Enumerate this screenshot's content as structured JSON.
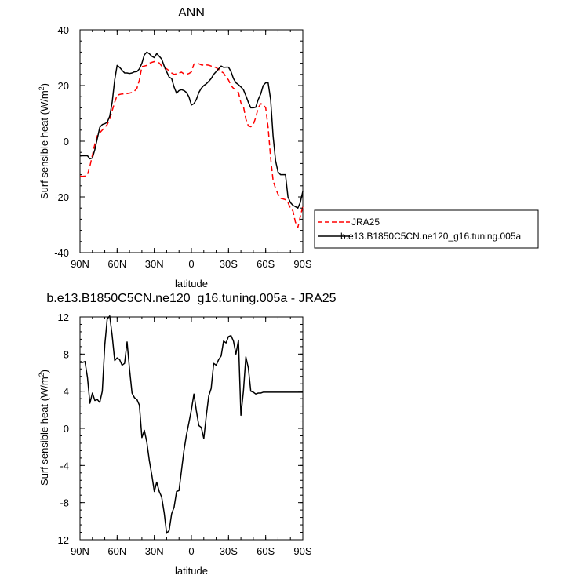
{
  "chart_data": [
    {
      "type": "line",
      "title": "ANN",
      "xlabel": "latitude",
      "ylabel": "Surf sensible heat (W/m",
      "ylabel_sup": "2",
      "ylabel_close": ")",
      "xlim": [
        90,
        -90
      ],
      "ylim": [
        -40,
        40
      ],
      "xticks": [
        {
          "value": 90,
          "label": "90N"
        },
        {
          "value": 60,
          "label": "60N"
        },
        {
          "value": 30,
          "label": "30N"
        },
        {
          "value": 0,
          "label": "0"
        },
        {
          "value": -30,
          "label": "30S"
        },
        {
          "value": -60,
          "label": "60S"
        },
        {
          "value": -90,
          "label": "90S"
        }
      ],
      "yticks": [
        {
          "value": 40,
          "label": "40"
        },
        {
          "value": 20,
          "label": "20"
        },
        {
          "value": 0,
          "label": "0"
        },
        {
          "value": -20,
          "label": "-20"
        },
        {
          "value": -40,
          "label": "-40"
        }
      ],
      "legend": {
        "position": "right"
      },
      "series": [
        {
          "name": "JRA25",
          "color": "#ff0000",
          "dash": "dashed",
          "x": [
            90,
            88,
            86,
            84,
            82,
            80,
            78,
            76,
            74,
            72,
            70,
            68,
            66,
            64,
            62,
            60,
            58,
            56,
            54,
            52,
            50,
            48,
            46,
            44,
            42,
            40,
            38,
            36,
            34,
            32,
            30,
            28,
            26,
            24,
            22,
            20,
            18,
            16,
            14,
            12,
            10,
            8,
            6,
            4,
            2,
            0,
            -2,
            -4,
            -6,
            -8,
            -10,
            -12,
            -14,
            -16,
            -18,
            -20,
            -22,
            -24,
            -26,
            -28,
            -30,
            -32,
            -34,
            -36,
            -38,
            -40,
            -42,
            -44,
            -46,
            -48,
            -50,
            -52,
            -54,
            -56,
            -58,
            -60,
            -62,
            -64,
            -66,
            -68,
            -70,
            -72,
            -74,
            -76,
            -78,
            -80,
            -82,
            -84,
            -86,
            -88,
            -90
          ],
          "y": [
            -12.5,
            -12.6,
            -12.5,
            -12,
            -9,
            -5,
            -1,
            2,
            3,
            4,
            5,
            6,
            8,
            11,
            14,
            16.5,
            16.8,
            17,
            17,
            17.1,
            17.3,
            17.5,
            18,
            19,
            22,
            26.8,
            27,
            27.2,
            28,
            28.3,
            28.6,
            28.4,
            28.1,
            27,
            26.3,
            26,
            25.3,
            24.5,
            24,
            24.2,
            24.5,
            24.8,
            24.2,
            24,
            24.3,
            24.9,
            27.7,
            28,
            27.8,
            27.4,
            27.3,
            27.4,
            27.3,
            27,
            26.8,
            26.4,
            25.8,
            25,
            24.5,
            23,
            22,
            20,
            19,
            18.5,
            17.5,
            13.8,
            12.5,
            8,
            5.5,
            5.2,
            6,
            8.5,
            12,
            13.5,
            13.2,
            12,
            5,
            -6,
            -14,
            -17,
            -19,
            -20.5,
            -20.7,
            -21,
            -22,
            -24,
            -25,
            -29,
            -31,
            -27,
            -23.5
          ]
        },
        {
          "name": "b.e13.B1850C5CN.ne120_g16.tuning.005a",
          "color": "#000000",
          "dash": "solid",
          "x": [
            90,
            88,
            86,
            84,
            82,
            80,
            78,
            76,
            74,
            72,
            70,
            68,
            66,
            64,
            62,
            60,
            58,
            56,
            54,
            52,
            50,
            48,
            46,
            44,
            42,
            40,
            38,
            36,
            34,
            32,
            30,
            28,
            26,
            24,
            22,
            20,
            18,
            16,
            14,
            12,
            10,
            8,
            6,
            4,
            2,
            0,
            -2,
            -4,
            -6,
            -8,
            -10,
            -12,
            -14,
            -16,
            -18,
            -20,
            -22,
            -24,
            -26,
            -28,
            -30,
            -32,
            -34,
            -36,
            -38,
            -40,
            -42,
            -44,
            -46,
            -48,
            -50,
            -52,
            -54,
            -56,
            -58,
            -60,
            -62,
            -64,
            -66,
            -68,
            -70,
            -72,
            -74,
            -76,
            -78,
            -80,
            -82,
            -84,
            -86,
            -88,
            -90
          ],
          "y": [
            -5.3,
            -5.2,
            -5.2,
            -5.2,
            -6.3,
            -6,
            -3,
            1,
            5,
            6,
            6.3,
            6.8,
            9,
            14,
            22,
            27.2,
            26.5,
            25.5,
            24.5,
            24.5,
            24.3,
            24.5,
            24.9,
            25,
            26,
            28,
            31,
            32,
            31.4,
            30.5,
            30,
            31.5,
            30.5,
            29.5,
            27,
            25,
            23,
            22.5,
            19.5,
            17.2,
            18.2,
            18.5,
            18.2,
            17.5,
            16,
            13,
            13.5,
            15,
            17.5,
            19,
            20,
            20.6,
            21.5,
            22.5,
            24,
            25,
            26,
            27,
            26.5,
            26.6,
            26.6,
            25,
            22.5,
            21,
            20.3,
            19.5,
            18.5,
            16.4,
            14,
            12,
            12,
            12.2,
            15,
            17,
            20,
            21,
            21,
            15,
            2,
            -7,
            -11,
            -12,
            -12,
            -12,
            -20,
            -22,
            -23,
            -23.5,
            -24,
            -22,
            -18
          ]
        }
      ]
    },
    {
      "type": "line",
      "title": "b.e13.B1850C5CN.ne120_g16.tuning.005a - JRA25",
      "xlabel": "latitude",
      "ylabel": "Surf sensible heat (W/m",
      "ylabel_sup": "2",
      "ylabel_close": ")",
      "xlim": [
        90,
        -90
      ],
      "ylim": [
        -12,
        12
      ],
      "xticks": [
        {
          "value": 90,
          "label": "90N"
        },
        {
          "value": 60,
          "label": "60N"
        },
        {
          "value": 30,
          "label": "30N"
        },
        {
          "value": 0,
          "label": "0"
        },
        {
          "value": -30,
          "label": "30S"
        },
        {
          "value": -60,
          "label": "60S"
        },
        {
          "value": -90,
          "label": "90S"
        }
      ],
      "yticks": [
        {
          "value": 12,
          "label": "12"
        },
        {
          "value": 8,
          "label": "8"
        },
        {
          "value": 4,
          "label": "4"
        },
        {
          "value": 0,
          "label": "0"
        },
        {
          "value": -4,
          "label": "-4"
        },
        {
          "value": -8,
          "label": "-8"
        },
        {
          "value": -12,
          "label": "-12"
        }
      ],
      "series": [
        {
          "color": "#000000",
          "dash": "solid",
          "x": [
            90,
            88,
            86,
            84,
            82,
            80,
            78,
            76,
            74,
            72,
            70,
            68,
            66,
            64,
            62,
            60,
            58,
            56,
            54,
            52,
            50,
            48,
            46,
            44,
            42,
            40,
            38,
            36,
            34,
            32,
            30,
            28,
            26,
            24,
            22,
            20,
            18,
            16,
            14,
            12,
            10,
            8,
            6,
            4,
            2,
            0,
            -2,
            -4,
            -6,
            -8,
            -10,
            -12,
            -14,
            -16,
            -18,
            -20,
            -22,
            -24,
            -26,
            -28,
            -30,
            -32,
            -34,
            -36,
            -38,
            -40,
            -42,
            -44,
            -46,
            -48,
            -50,
            -52,
            -54,
            -56,
            -58,
            -60,
            -62,
            -64,
            -66,
            -68,
            -70,
            -72,
            -74,
            -76,
            -78,
            -80,
            -82,
            -84,
            -86,
            -88,
            -90
          ],
          "y": [
            7.1,
            7.1,
            7.2,
            5.5,
            2.7,
            3.8,
            3.0,
            3.1,
            2.8,
            4.0,
            9.0,
            11.8,
            12.1,
            10.0,
            7.3,
            7.6,
            7.4,
            6.8,
            7.0,
            9.3,
            6.4,
            3.8,
            3.3,
            3.1,
            2.5,
            -1,
            -0.2,
            -1.5,
            -3.5,
            -5,
            -6.8,
            -5.8,
            -6.8,
            -7.4,
            -9.1,
            -11.3,
            -11.0,
            -9.2,
            -8.5,
            -6.8,
            -6.7,
            -4.5,
            -2.4,
            -0.7,
            0.6,
            2,
            3.7,
            1.9,
            0.3,
            0.1,
            -1.1,
            1.3,
            3.5,
            4.3,
            7.0,
            6.8,
            7.4,
            7.8,
            9.4,
            9.2,
            9.9,
            10.0,
            9.4,
            8.0,
            9.5,
            1.4,
            4,
            7.7,
            6.5,
            4.0,
            3.9,
            3.7,
            3.8,
            3.8,
            3.9,
            3.9,
            3.9,
            3.9,
            3.9,
            3.9,
            3.9,
            3.9,
            3.9,
            3.9,
            3.9,
            3.9,
            3.9,
            3.9,
            3.9,
            3.9,
            3.9
          ]
        }
      ]
    }
  ]
}
